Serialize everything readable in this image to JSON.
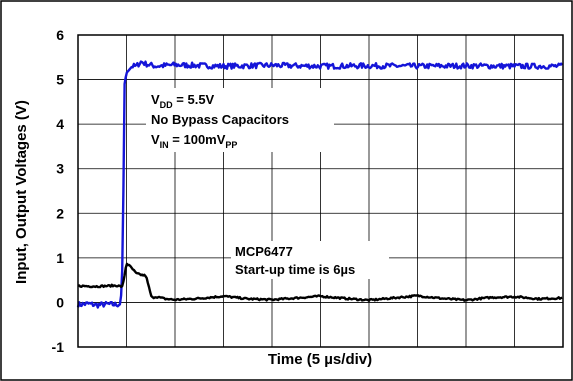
{
  "chart_data": {
    "type": "line",
    "title": "",
    "xlabel": "Time (5 µs/div)",
    "ylabel": "Input, Output Voltages (V)",
    "ylim": [
      -1,
      6
    ],
    "yticks": [
      "-1",
      "0",
      "1",
      "2",
      "3",
      "4",
      "5",
      "6"
    ],
    "x_units": "microseconds",
    "xlim": [
      0,
      50
    ],
    "grid": true,
    "legend": "none",
    "annotations": {
      "conditions": {
        "vdd": {
          "main": "V",
          "sub": "DD",
          "rest": " = 5.5V"
        },
        "bypass": "No Bypass Capacitors",
        "vin": {
          "main": "V",
          "sub1": "IN",
          "mid": " = 100mV",
          "sub2": "PP"
        }
      },
      "part": {
        "name": "MCP6477",
        "startup": "Start-up time is 6µs"
      }
    },
    "series": [
      {
        "color": "#1515d8",
        "x": [
          0,
          1,
          2,
          3,
          4,
          4.4,
          4.6,
          4.8,
          5,
          5.2,
          5.6,
          6,
          6.5,
          7,
          8,
          10,
          15,
          20,
          25,
          30,
          35,
          40,
          45,
          50
        ],
        "values": [
          -0.05,
          -0.03,
          -0.06,
          -0.04,
          -0.05,
          -0.03,
          0.9,
          4.9,
          5.15,
          5.2,
          5.3,
          5.3,
          5.4,
          5.35,
          5.3,
          5.33,
          5.3,
          5.32,
          5.3,
          5.31,
          5.3,
          5.31,
          5.3,
          5.3
        ],
        "noise": 0.06
      },
      {
        "color": "#000000",
        "x": [
          0,
          2,
          4,
          4.6,
          5,
          5.5,
          6,
          6.5,
          7,
          7.3,
          7.6,
          8,
          9,
          10,
          12.5,
          15,
          17.5,
          20,
          22.5,
          25,
          27.5,
          30,
          32.5,
          35,
          37.5,
          40,
          42.5,
          45,
          47.5,
          50
        ],
        "values": [
          0.37,
          0.36,
          0.38,
          0.35,
          0.88,
          0.78,
          0.65,
          0.62,
          0.6,
          0.35,
          0.1,
          0.13,
          0.08,
          0.06,
          0.09,
          0.14,
          0.08,
          0.06,
          0.1,
          0.14,
          0.09,
          0.05,
          0.1,
          0.15,
          0.09,
          0.05,
          0.11,
          0.13,
          0.08,
          0.1
        ],
        "noise": 0.02
      }
    ]
  }
}
